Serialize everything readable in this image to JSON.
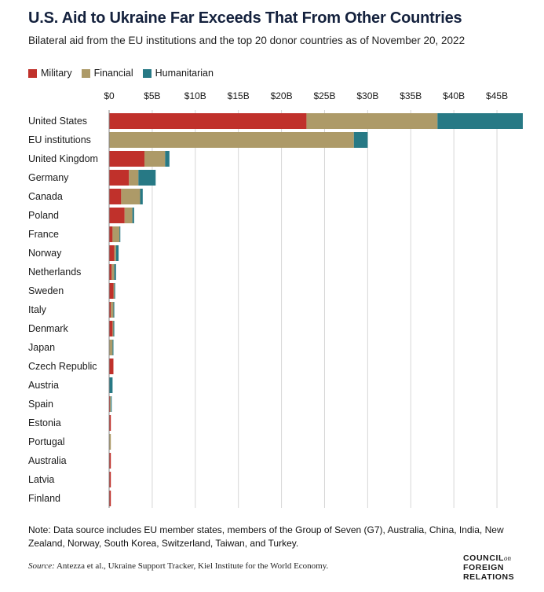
{
  "title": "U.S. Aid to Ukraine Far Exceeds That From Other Countries",
  "subtitle": "Bilateral aid from the EU institutions and the top 20 donor countries as of November 20, 2022",
  "note": "Note: Data source includes EU member states, members of the Group of Seven (G7), Australia, China, India, New Zealand, Norway, South Korea, Switzerland, Taiwan, and Turkey.",
  "source_label": "Source:",
  "source_text": "Antezza et al., Ukraine Support Tracker, Kiel Institute for the World Economy.",
  "logo": {
    "line1": "COUNCIL",
    "on": "on",
    "line2": "FOREIGN",
    "line3": "RELATIONS"
  },
  "colors": {
    "military": "#c0312b",
    "financial": "#ad9a68",
    "humanitarian": "#277985",
    "grid": "#d6d6d6"
  },
  "chart_data": {
    "type": "bar",
    "orientation": "horizontal",
    "stacked": true,
    "categories": [
      "United States",
      "EU institutions",
      "United Kingdom",
      "Germany",
      "Canada",
      "Poland",
      "France",
      "Norway",
      "Netherlands",
      "Sweden",
      "Italy",
      "Denmark",
      "Japan",
      "Czech Republic",
      "Austria",
      "Spain",
      "Estonia",
      "Portugal",
      "Australia",
      "Latvia",
      "Finland"
    ],
    "series": [
      {
        "name": "Military",
        "color": "#c0312b",
        "values": [
          22.9,
          0,
          4.1,
          2.3,
          1.4,
          1.8,
          0.4,
          0.6,
          0.3,
          0.5,
          0.2,
          0.4,
          0,
          0.5,
          0,
          0.1,
          0.2,
          0,
          0.2,
          0.2,
          0.2
        ]
      },
      {
        "name": "Financial",
        "color": "#ad9a68",
        "values": [
          15.2,
          28.4,
          2.4,
          1.1,
          2.2,
          0.9,
          0.8,
          0.2,
          0.3,
          0.1,
          0.3,
          0.1,
          0.4,
          0,
          0,
          0.1,
          0,
          0.2,
          0,
          0,
          0
        ]
      },
      {
        "name": "Humanitarian",
        "color": "#277985",
        "values": [
          9.9,
          1.6,
          0.5,
          2.0,
          0.3,
          0.2,
          0.1,
          0.3,
          0.2,
          0.1,
          0.1,
          0.1,
          0.1,
          0,
          0.4,
          0.1,
          0,
          0,
          0,
          0,
          0
        ]
      }
    ],
    "x_ticks": [
      "$0",
      "$5B",
      "$10B",
      "$15B",
      "$20B",
      "$25B",
      "$30B",
      "$35B",
      "$40B",
      "$45B"
    ],
    "x_tick_values": [
      0,
      5,
      10,
      15,
      20,
      25,
      30,
      35,
      40,
      45
    ],
    "xlim": [
      0,
      48
    ],
    "xlabel": "",
    "ylabel": "",
    "grid": true,
    "legend_position": "top-left"
  }
}
